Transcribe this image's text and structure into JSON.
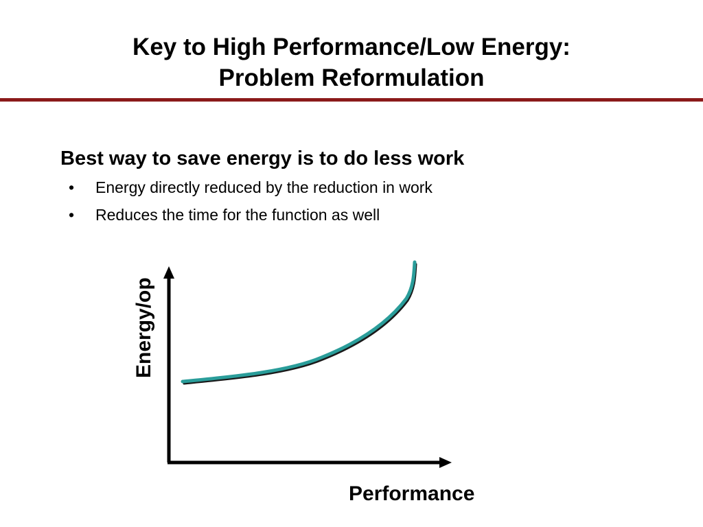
{
  "slide": {
    "title_line1": "Key to High Performance/Low Energy:",
    "title_line2": "Problem Reformulation",
    "main_point": "Best way to save energy is to do less work",
    "bullets": [
      "Energy directly reduced by the reduction in work",
      "Reduces the time for the function as well"
    ],
    "bullet_symbol": "•"
  },
  "diagram": {
    "y_axis_label": "Energy/op",
    "x_axis_label": "Performance",
    "curve_shape": "convex-rising-to-vertical-asymptote"
  },
  "colors": {
    "title_rule": "#8B1A1A",
    "curve": "#2A9D9A",
    "curve_shadow": "#1a1a1a",
    "axes": "#000000"
  }
}
